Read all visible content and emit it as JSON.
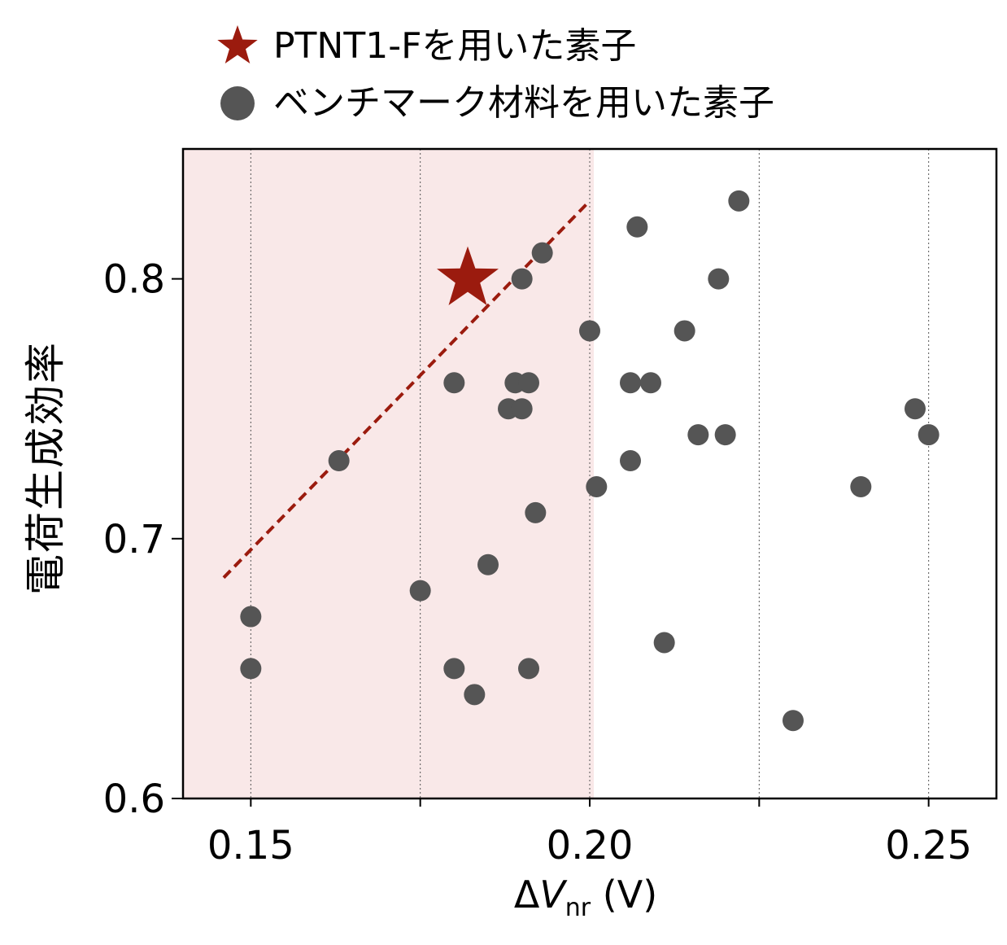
{
  "legend": {
    "items": [
      {
        "label": "PTNT1-Fを用いた素子",
        "marker": "star",
        "color": "#9b1b0e"
      },
      {
        "label": "ベンチマーク材料を用いた素子",
        "marker": "circle",
        "color": "#555555"
      }
    ]
  },
  "axes": {
    "ylabel": "電荷生成効率",
    "xlabel_delta": "Δ",
    "xlabel_var": "V",
    "xlabel_sub": "nr",
    "xlabel_unit": " (V)"
  },
  "chart_data": {
    "type": "scatter",
    "title": "",
    "xlabel": "ΔVnr (V)",
    "ylabel": "電荷生成効率",
    "xlim": [
      0.14,
      0.26
    ],
    "ylim": [
      0.6,
      0.85
    ],
    "x_ticks": [
      0.15,
      0.175,
      0.2,
      0.225,
      0.25
    ],
    "x_tick_labels": [
      "0.15",
      "",
      "0.20",
      "",
      "0.25"
    ],
    "y_ticks": [
      0.6,
      0.7,
      0.8
    ],
    "y_tick_labels": [
      "0.6",
      "0.7",
      "0.8"
    ],
    "grid": "vertical dotted",
    "legend_position": "top",
    "shaded_region": {
      "x": [
        0.14,
        0.2
      ],
      "color": "#f9e8e8"
    },
    "series": [
      {
        "name": "PTNT1-Fを用いた素子",
        "marker": "star",
        "color": "#9b1b0e",
        "points": [
          {
            "x": 0.182,
            "y": 0.8
          }
        ]
      },
      {
        "name": "ベンチマーク材料を用いた素子",
        "marker": "circle",
        "color": "#555555",
        "points": [
          {
            "x": 0.15,
            "y": 0.67
          },
          {
            "x": 0.15,
            "y": 0.65
          },
          {
            "x": 0.163,
            "y": 0.73
          },
          {
            "x": 0.175,
            "y": 0.68
          },
          {
            "x": 0.18,
            "y": 0.76
          },
          {
            "x": 0.18,
            "y": 0.65
          },
          {
            "x": 0.183,
            "y": 0.64
          },
          {
            "x": 0.185,
            "y": 0.69
          },
          {
            "x": 0.188,
            "y": 0.75
          },
          {
            "x": 0.189,
            "y": 0.76
          },
          {
            "x": 0.19,
            "y": 0.8
          },
          {
            "x": 0.19,
            "y": 0.75
          },
          {
            "x": 0.191,
            "y": 0.76
          },
          {
            "x": 0.191,
            "y": 0.65
          },
          {
            "x": 0.192,
            "y": 0.71
          },
          {
            "x": 0.193,
            "y": 0.81
          },
          {
            "x": 0.2,
            "y": 0.78
          },
          {
            "x": 0.201,
            "y": 0.72
          },
          {
            "x": 0.206,
            "y": 0.76
          },
          {
            "x": 0.206,
            "y": 0.73
          },
          {
            "x": 0.207,
            "y": 0.82
          },
          {
            "x": 0.209,
            "y": 0.76
          },
          {
            "x": 0.211,
            "y": 0.66
          },
          {
            "x": 0.214,
            "y": 0.78
          },
          {
            "x": 0.216,
            "y": 0.74
          },
          {
            "x": 0.219,
            "y": 0.8
          },
          {
            "x": 0.22,
            "y": 0.74
          },
          {
            "x": 0.222,
            "y": 0.83
          },
          {
            "x": 0.23,
            "y": 0.63
          },
          {
            "x": 0.24,
            "y": 0.72
          },
          {
            "x": 0.248,
            "y": 0.75
          },
          {
            "x": 0.25,
            "y": 0.74
          }
        ]
      }
    ],
    "trend_line": {
      "style": "dashed",
      "color": "#9b1b0e",
      "x": [
        0.146,
        0.2
      ],
      "y": [
        0.685,
        0.83
      ]
    }
  }
}
